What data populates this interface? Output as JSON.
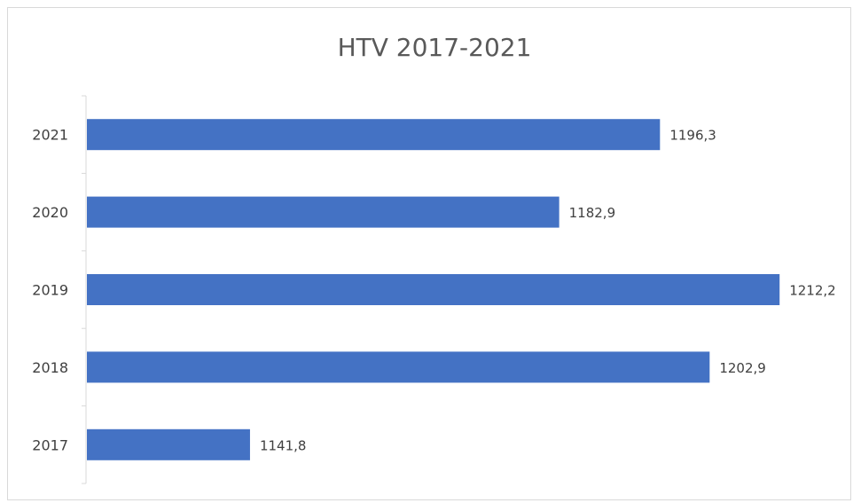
{
  "chart_data": {
    "type": "bar",
    "orientation": "horizontal",
    "title": "HTV 2017-2021",
    "categories": [
      "2021",
      "2020",
      "2019",
      "2018",
      "2017"
    ],
    "values": [
      1196.3,
      1182.9,
      1212.2,
      1202.9,
      1141.8
    ],
    "value_labels": [
      "1196,3",
      "1182,9",
      "1212,2",
      "1202,9",
      "1141,8"
    ],
    "bar_color": "#4472C4",
    "xlim": [
      1120,
      1213
    ],
    "grid": false,
    "legend": "none"
  }
}
